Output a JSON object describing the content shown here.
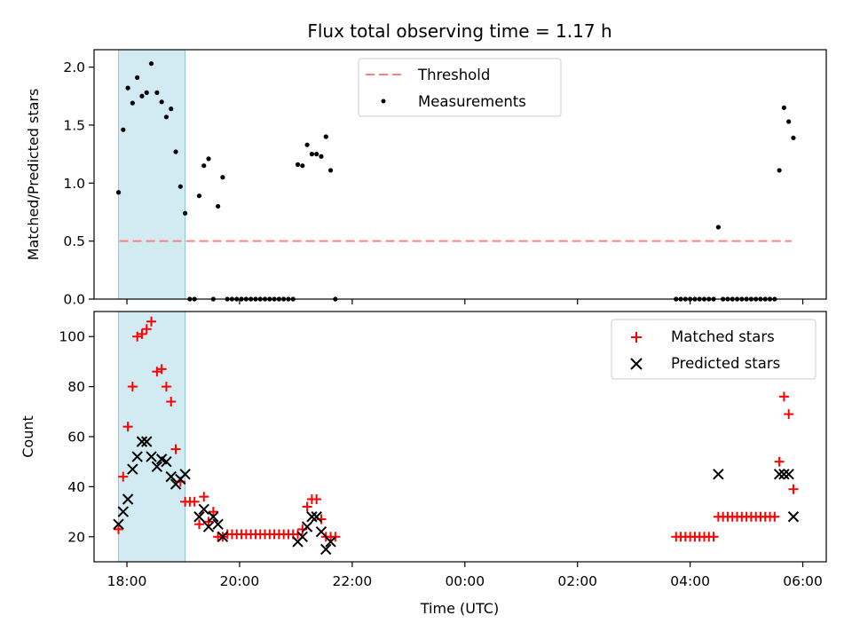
{
  "title": "Flux total observing time = 1.17 h",
  "colors": {
    "threshold": "#ff8080",
    "measurements": "#000000",
    "matched": "#ff0000",
    "predicted": "#000000",
    "span": "#add8e6"
  },
  "chart_data": [
    {
      "type": "scatter",
      "panel": "top",
      "ylabel": "Matched/Predicted stars",
      "ylim": [
        0,
        2.15
      ],
      "yticks": [
        0.0,
        0.5,
        1.0,
        1.5,
        2.0
      ],
      "yticklabels": [
        "0.0",
        "0.5",
        "1.0",
        "1.5",
        "2.0"
      ],
      "legend": {
        "placement": "upper center",
        "entries": [
          "Threshold",
          "Measurements"
        ]
      },
      "threshold": {
        "name": "Threshold",
        "value": 0.5,
        "x_start": "17:52",
        "x_end": "05:48"
      },
      "series": [
        {
          "name": "Measurements",
          "marker": "dot",
          "points": [
            [
              "17:51",
              0.92
            ],
            [
              "17:56",
              1.46
            ],
            [
              "18:01",
              1.82
            ],
            [
              "18:06",
              1.69
            ],
            [
              "18:11",
              1.91
            ],
            [
              "18:16",
              1.75
            ],
            [
              "18:21",
              1.78
            ],
            [
              "18:26",
              2.03
            ],
            [
              "18:32",
              1.78
            ],
            [
              "18:37",
              1.7
            ],
            [
              "18:42",
              1.57
            ],
            [
              "18:47",
              1.64
            ],
            [
              "18:52",
              1.27
            ],
            [
              "18:57",
              0.97
            ],
            [
              "19:02",
              0.74
            ],
            [
              "19:07",
              0.0
            ],
            [
              "19:12",
              0.0
            ],
            [
              "19:17",
              0.89
            ],
            [
              "19:22",
              1.15
            ],
            [
              "19:27",
              1.21
            ],
            [
              "19:32",
              0.0
            ],
            [
              "19:37",
              0.8
            ],
            [
              "19:42",
              1.05
            ],
            [
              "19:47",
              0.0
            ],
            [
              "19:52",
              0.0
            ],
            [
              "19:57",
              0.0
            ],
            [
              "20:02",
              0.0
            ],
            [
              "20:07",
              0.0
            ],
            [
              "20:12",
              0.0
            ],
            [
              "20:17",
              0.0
            ],
            [
              "20:22",
              0.0
            ],
            [
              "20:27",
              0.0
            ],
            [
              "20:32",
              0.0
            ],
            [
              "20:37",
              0.0
            ],
            [
              "20:42",
              0.0
            ],
            [
              "20:47",
              0.0
            ],
            [
              "20:52",
              0.0
            ],
            [
              "20:57",
              0.0
            ],
            [
              "21:02",
              1.16
            ],
            [
              "21:07",
              1.15
            ],
            [
              "21:12",
              1.33
            ],
            [
              "21:17",
              1.25
            ],
            [
              "21:22",
              1.25
            ],
            [
              "21:27",
              1.23
            ],
            [
              "21:32",
              1.4
            ],
            [
              "21:37",
              1.11
            ],
            [
              "21:42",
              0.0
            ],
            [
              "03:45",
              0.0
            ],
            [
              "03:50",
              0.0
            ],
            [
              "03:55",
              0.0
            ],
            [
              "04:00",
              0.0
            ],
            [
              "04:05",
              0.0
            ],
            [
              "04:10",
              0.0
            ],
            [
              "04:15",
              0.0
            ],
            [
              "04:20",
              0.0
            ],
            [
              "04:25",
              0.0
            ],
            [
              "04:30",
              0.62
            ],
            [
              "04:35",
              0.0
            ],
            [
              "04:40",
              0.0
            ],
            [
              "04:45",
              0.0
            ],
            [
              "04:50",
              0.0
            ],
            [
              "04:55",
              0.0
            ],
            [
              "05:00",
              0.0
            ],
            [
              "05:05",
              0.0
            ],
            [
              "05:10",
              0.0
            ],
            [
              "05:15",
              0.0
            ],
            [
              "05:20",
              0.0
            ],
            [
              "05:25",
              0.0
            ],
            [
              "05:30",
              0.0
            ],
            [
              "05:35",
              1.11
            ],
            [
              "05:40",
              1.65
            ],
            [
              "05:45",
              1.53
            ],
            [
              "05:50",
              1.39
            ]
          ]
        }
      ]
    },
    {
      "type": "scatter",
      "panel": "bottom",
      "xlabel": "Time (UTC)",
      "ylabel": "Count",
      "ylim": [
        10,
        110
      ],
      "yticks": [
        20,
        40,
        60,
        80,
        100
      ],
      "yticklabels": [
        "20",
        "40",
        "60",
        "80",
        "100"
      ],
      "legend": {
        "placement": "upper right",
        "entries": [
          "Matched stars",
          "Predicted stars"
        ]
      },
      "series": [
        {
          "name": "Matched stars",
          "marker": "plus",
          "points": [
            [
              "17:51",
              23
            ],
            [
              "17:56",
              44
            ],
            [
              "18:01",
              64
            ],
            [
              "18:06",
              80
            ],
            [
              "18:11",
              100
            ],
            [
              "18:16",
              101
            ],
            [
              "18:21",
              103
            ],
            [
              "18:26",
              106
            ],
            [
              "18:32",
              86
            ],
            [
              "18:37",
              87
            ],
            [
              "18:42",
              80
            ],
            [
              "18:47",
              74
            ],
            [
              "18:52",
              55
            ],
            [
              "18:57",
              42
            ],
            [
              "19:02",
              34
            ],
            [
              "19:07",
              34
            ],
            [
              "19:12",
              34
            ],
            [
              "19:17",
              25
            ],
            [
              "19:22",
              36
            ],
            [
              "19:27",
              26
            ],
            [
              "19:32",
              30
            ],
            [
              "19:37",
              20
            ],
            [
              "19:42",
              20
            ],
            [
              "19:47",
              21
            ],
            [
              "19:52",
              21
            ],
            [
              "19:57",
              21
            ],
            [
              "20:02",
              21
            ],
            [
              "20:07",
              21
            ],
            [
              "20:12",
              21
            ],
            [
              "20:17",
              21
            ],
            [
              "20:22",
              21
            ],
            [
              "20:27",
              21
            ],
            [
              "20:32",
              21
            ],
            [
              "20:37",
              21
            ],
            [
              "20:42",
              21
            ],
            [
              "20:47",
              21
            ],
            [
              "20:52",
              21
            ],
            [
              "20:57",
              21
            ],
            [
              "21:02",
              21
            ],
            [
              "21:07",
              23
            ],
            [
              "21:12",
              32
            ],
            [
              "21:17",
              35
            ],
            [
              "21:22",
              35
            ],
            [
              "21:27",
              27
            ],
            [
              "21:32",
              20
            ],
            [
              "21:37",
              20
            ],
            [
              "21:42",
              20
            ],
            [
              "03:45",
              20
            ],
            [
              "03:50",
              20
            ],
            [
              "03:55",
              20
            ],
            [
              "04:00",
              20
            ],
            [
              "04:05",
              20
            ],
            [
              "04:10",
              20
            ],
            [
              "04:15",
              20
            ],
            [
              "04:20",
              20
            ],
            [
              "04:25",
              20
            ],
            [
              "04:30",
              28
            ],
            [
              "04:35",
              28
            ],
            [
              "04:40",
              28
            ],
            [
              "04:45",
              28
            ],
            [
              "04:50",
              28
            ],
            [
              "04:55",
              28
            ],
            [
              "05:00",
              28
            ],
            [
              "05:05",
              28
            ],
            [
              "05:10",
              28
            ],
            [
              "05:15",
              28
            ],
            [
              "05:20",
              28
            ],
            [
              "05:25",
              28
            ],
            [
              "05:30",
              28
            ],
            [
              "05:35",
              50
            ],
            [
              "05:40",
              76
            ],
            [
              "05:45",
              69
            ],
            [
              "05:50",
              39
            ]
          ]
        },
        {
          "name": "Predicted stars",
          "marker": "x",
          "points": [
            [
              "17:51",
              25
            ],
            [
              "17:56",
              30
            ],
            [
              "18:01",
              35
            ],
            [
              "18:06",
              47
            ],
            [
              "18:11",
              52
            ],
            [
              "18:16",
              58
            ],
            [
              "18:21",
              58
            ],
            [
              "18:26",
              52
            ],
            [
              "18:32",
              48
            ],
            [
              "18:37",
              51
            ],
            [
              "18:42",
              50
            ],
            [
              "18:47",
              44
            ],
            [
              "18:52",
              41
            ],
            [
              "18:57",
              43
            ],
            [
              "19:02",
              45
            ],
            [
              "19:17",
              28
            ],
            [
              "19:22",
              31
            ],
            [
              "19:27",
              24
            ],
            [
              "19:32",
              28
            ],
            [
              "19:37",
              25
            ],
            [
              "19:42",
              20
            ],
            [
              "21:02",
              18
            ],
            [
              "21:07",
              20
            ],
            [
              "21:12",
              24
            ],
            [
              "21:17",
              28
            ],
            [
              "21:22",
              28
            ],
            [
              "21:27",
              22
            ],
            [
              "21:32",
              15
            ],
            [
              "21:37",
              18
            ],
            [
              "04:30",
              45
            ],
            [
              "05:35",
              45
            ],
            [
              "05:40",
              45
            ],
            [
              "05:45",
              45
            ],
            [
              "05:50",
              28
            ]
          ]
        }
      ]
    }
  ],
  "shared": {
    "xticklabels": [
      "18:00",
      "20:00",
      "22:00",
      "00:00",
      "02:00",
      "04:00",
      "06:00"
    ],
    "xlim": [
      "17:25",
      "06:25"
    ],
    "highlight_span": [
      "17:51",
      "19:02"
    ]
  }
}
